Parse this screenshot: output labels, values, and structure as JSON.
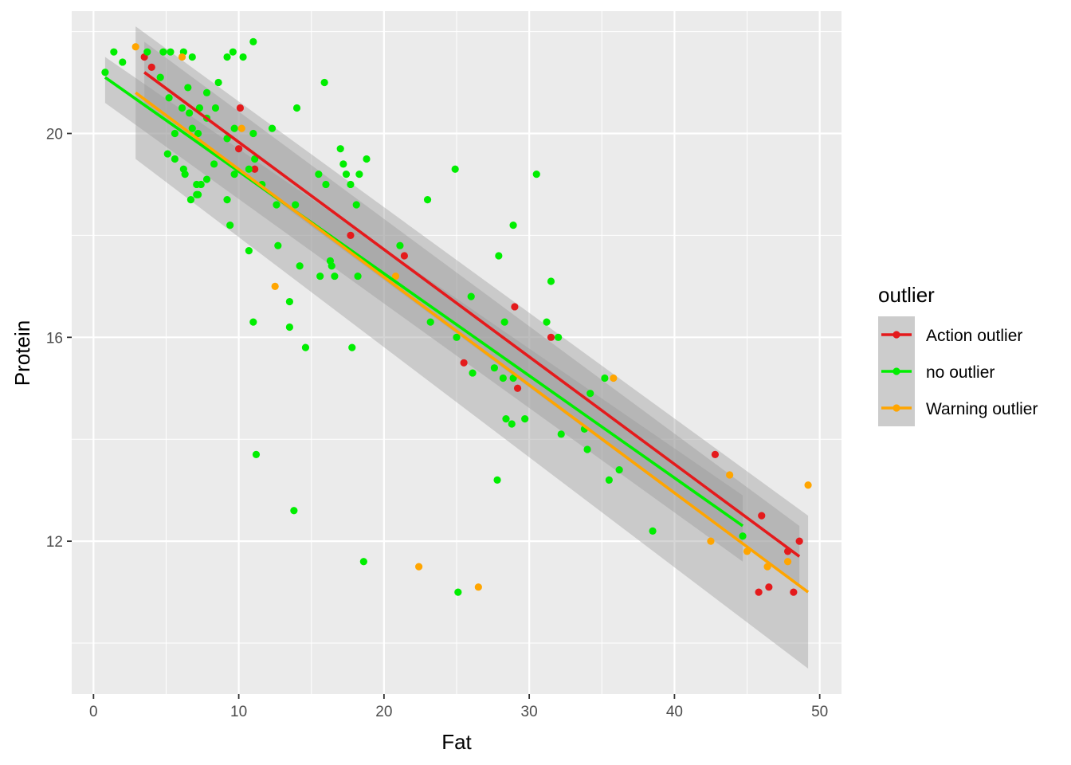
{
  "chart_data": {
    "type": "scatter",
    "xlabel": "Fat",
    "ylabel": "Protein",
    "xlim": [
      -1.5,
      51.5
    ],
    "ylim": [
      9.0,
      22.4
    ],
    "x_ticks": [
      0,
      10,
      20,
      30,
      40,
      50
    ],
    "y_ticks": [
      12,
      16,
      20
    ],
    "x_tick_labels": [
      "0",
      "10",
      "20",
      "30",
      "40",
      "50"
    ],
    "y_tick_labels": [
      "12",
      "16",
      "20"
    ],
    "grid": true,
    "legend": {
      "title": "outlier",
      "position": "right",
      "entries": [
        "Action outlier",
        "no outlier",
        "Warning outlier"
      ]
    },
    "series": [
      {
        "name": "Action outlier",
        "color": "#e41a1c",
        "points": [
          [
            3.5,
            21.5
          ],
          [
            4,
            21.3
          ],
          [
            10.1,
            20.5
          ],
          [
            10,
            19.7
          ],
          [
            11.1,
            19.3
          ],
          [
            17.7,
            18.0
          ],
          [
            21.4,
            17.6
          ],
          [
            25.5,
            15.5
          ],
          [
            29,
            16.6
          ],
          [
            29.2,
            15.0
          ],
          [
            31.5,
            16.0
          ],
          [
            42.8,
            13.7
          ],
          [
            45.8,
            11.0
          ],
          [
            46,
            12.5
          ],
          [
            46.5,
            11.1
          ],
          [
            47.8,
            11.8
          ],
          [
            48.2,
            11.0
          ],
          [
            48.6,
            12.0
          ]
        ],
        "fit": {
          "x": [
            3.5,
            48.6
          ],
          "y": [
            21.2,
            11.7
          ]
        },
        "ci": {
          "x": [
            3.5,
            48.6
          ],
          "lower": [
            20.6,
            11.1
          ],
          "upper": [
            21.8,
            12.3
          ]
        }
      },
      {
        "name": "no outlier",
        "color": "#00ee00",
        "points": [
          [
            0.8,
            21.2
          ],
          [
            1.4,
            21.6
          ],
          [
            2,
            21.4
          ],
          [
            3.7,
            21.6
          ],
          [
            4.8,
            21.6
          ],
          [
            5.3,
            21.6
          ],
          [
            6.2,
            21.6
          ],
          [
            6.8,
            21.5
          ],
          [
            9.2,
            21.5
          ],
          [
            9.6,
            21.6
          ],
          [
            10.3,
            21.5
          ],
          [
            11,
            21.8
          ],
          [
            8.6,
            21.0
          ],
          [
            15.9,
            21.0
          ],
          [
            4.6,
            21.1
          ],
          [
            5.2,
            20.7
          ],
          [
            6.1,
            20.5
          ],
          [
            6.5,
            20.9
          ],
          [
            7.3,
            20.5
          ],
          [
            7.8,
            20.8
          ],
          [
            8.4,
            20.5
          ],
          [
            6.6,
            20.4
          ],
          [
            14,
            20.5
          ],
          [
            5.6,
            20.0
          ],
          [
            6.8,
            20.1
          ],
          [
            7.2,
            20.0
          ],
          [
            7.8,
            20.3
          ],
          [
            9.7,
            20.1
          ],
          [
            11,
            20.0
          ],
          [
            12.3,
            20.1
          ],
          [
            5.1,
            19.6
          ],
          [
            5.6,
            19.5
          ],
          [
            6.2,
            19.3
          ],
          [
            6.3,
            19.2
          ],
          [
            7.1,
            19.0
          ],
          [
            7.1,
            18.8
          ],
          [
            7.4,
            19.0
          ],
          [
            7.8,
            19.1
          ],
          [
            8.3,
            19.4
          ],
          [
            9.2,
            19.9
          ],
          [
            9.7,
            19.2
          ],
          [
            10.7,
            19.3
          ],
          [
            11.1,
            19.5
          ],
          [
            11.6,
            19.0
          ],
          [
            17,
            19.7
          ],
          [
            17.2,
            19.4
          ],
          [
            17.4,
            19.2
          ],
          [
            17.7,
            19.0
          ],
          [
            18.3,
            19.2
          ],
          [
            18.8,
            19.5
          ],
          [
            15.5,
            19.2
          ],
          [
            16,
            19.0
          ],
          [
            24.9,
            19.3
          ],
          [
            30.5,
            19.2
          ],
          [
            6.7,
            18.7
          ],
          [
            7.2,
            18.8
          ],
          [
            9.2,
            18.7
          ],
          [
            12.6,
            18.6
          ],
          [
            13.9,
            18.6
          ],
          [
            18.1,
            18.6
          ],
          [
            23,
            18.7
          ],
          [
            9.4,
            18.2
          ],
          [
            28.9,
            18.2
          ],
          [
            12.7,
            17.8
          ],
          [
            10.7,
            17.7
          ],
          [
            14.2,
            17.4
          ],
          [
            15.6,
            17.2
          ],
          [
            16.3,
            17.5
          ],
          [
            16.4,
            17.4
          ],
          [
            16.6,
            17.2
          ],
          [
            18.2,
            17.2
          ],
          [
            21.1,
            17.8
          ],
          [
            27.9,
            17.6
          ],
          [
            31.5,
            17.1
          ],
          [
            26,
            16.8
          ],
          [
            13.5,
            16.7
          ],
          [
            11,
            16.3
          ],
          [
            13.5,
            16.2
          ],
          [
            23.2,
            16.3
          ],
          [
            28.3,
            16.3
          ],
          [
            31.2,
            16.3
          ],
          [
            14.6,
            15.8
          ],
          [
            17.8,
            15.8
          ],
          [
            25,
            16.0
          ],
          [
            32,
            16.0
          ],
          [
            26.1,
            15.3
          ],
          [
            27.6,
            15.4
          ],
          [
            28.2,
            15.2
          ],
          [
            28.9,
            15.2
          ],
          [
            35.2,
            15.2
          ],
          [
            34.2,
            14.9
          ],
          [
            28.4,
            14.4
          ],
          [
            28.8,
            14.3
          ],
          [
            29.7,
            14.4
          ],
          [
            32.2,
            14.1
          ],
          [
            33.8,
            14.2
          ],
          [
            34.0,
            13.8
          ],
          [
            36.2,
            13.4
          ],
          [
            35.5,
            13.2
          ],
          [
            27.8,
            13.2
          ],
          [
            11.2,
            13.7
          ],
          [
            13.8,
            12.6
          ],
          [
            38.5,
            12.2
          ],
          [
            18.6,
            11.6
          ],
          [
            25.1,
            11.0
          ],
          [
            44.7,
            12.1
          ]
        ],
        "fit": {
          "x": [
            0.8,
            44.7
          ],
          "y": [
            21.1,
            12.3
          ]
        },
        "ci": {
          "x": [
            0.8,
            44.7
          ],
          "lower": [
            20.6,
            11.6
          ],
          "upper": [
            21.5,
            12.9
          ]
        }
      },
      {
        "name": "Warning outlier",
        "color": "#ffa500",
        "points": [
          [
            2.9,
            21.7
          ],
          [
            6.1,
            21.5
          ],
          [
            10.2,
            20.1
          ],
          [
            12.5,
            17.0
          ],
          [
            20.8,
            17.2
          ],
          [
            22.4,
            11.5
          ],
          [
            26.5,
            11.1
          ],
          [
            35.8,
            15.2
          ],
          [
            42.5,
            12.0
          ],
          [
            43.8,
            13.3
          ],
          [
            45,
            11.8
          ],
          [
            46.4,
            11.5
          ],
          [
            47.8,
            11.6
          ],
          [
            49.2,
            13.1
          ]
        ],
        "fit": {
          "x": [
            2.9,
            49.2
          ],
          "y": [
            20.8,
            11.0
          ]
        },
        "ci": {
          "x": [
            2.9,
            49.2
          ],
          "lower": [
            19.5,
            9.5
          ],
          "upper": [
            22.1,
            12.5
          ]
        }
      }
    ]
  }
}
